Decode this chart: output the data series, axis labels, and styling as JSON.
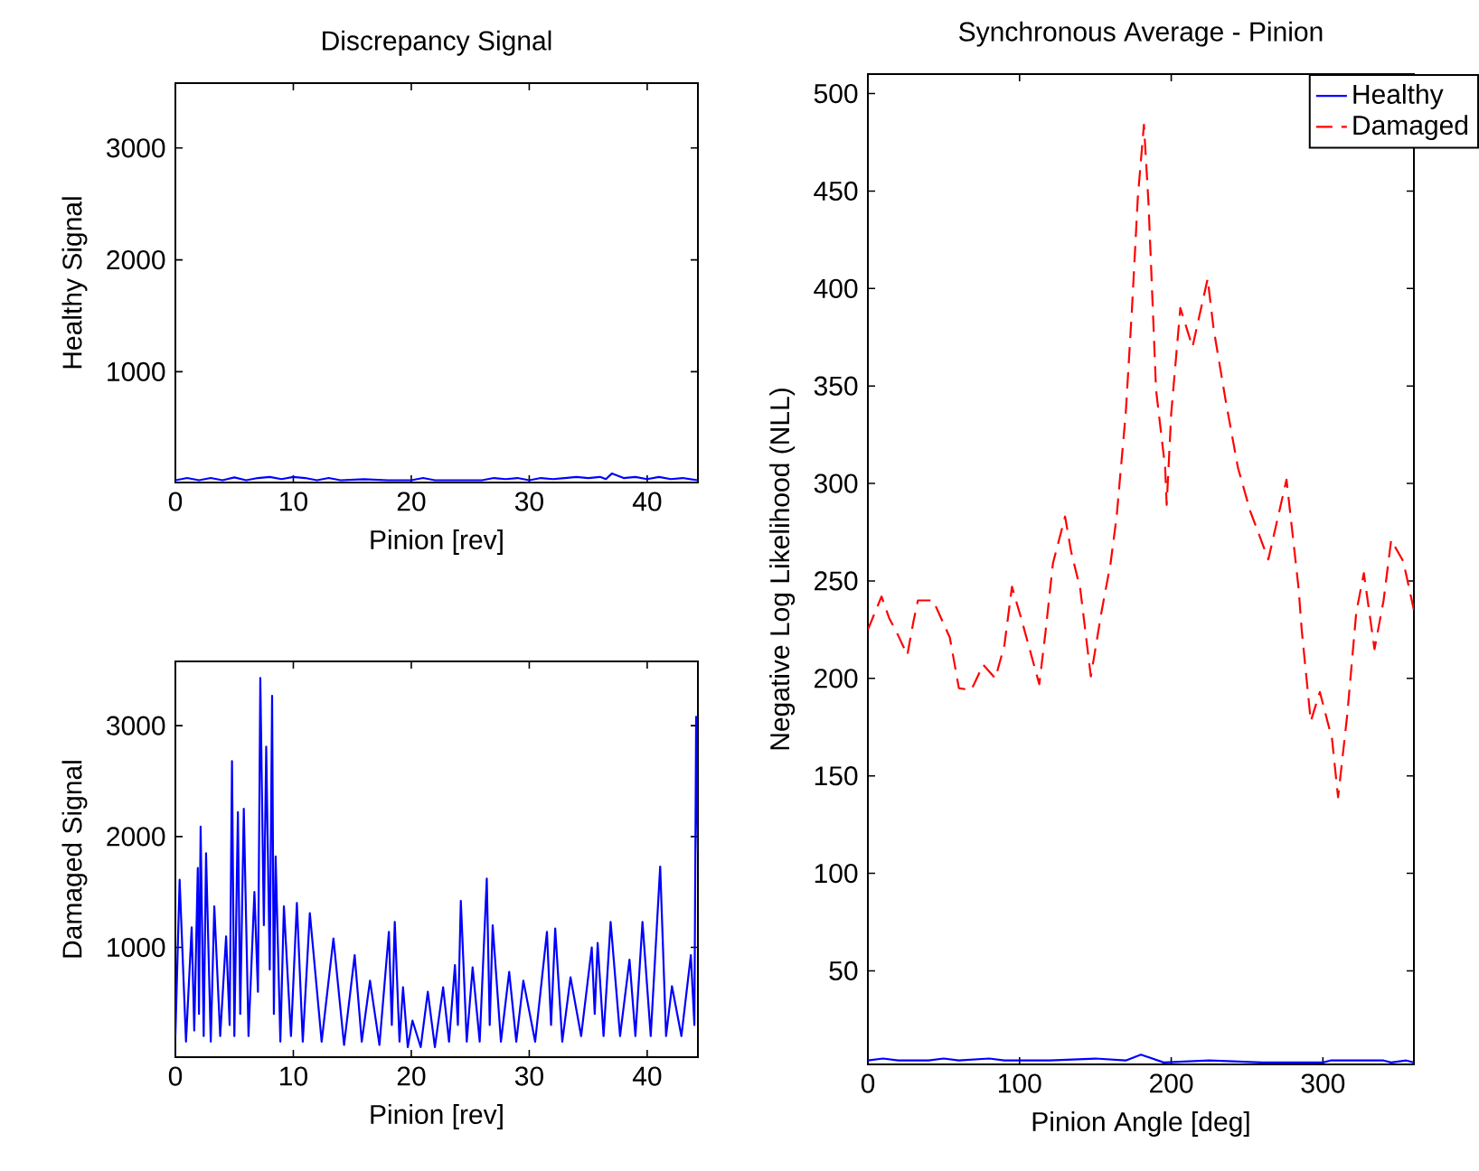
{
  "chart_data": [
    {
      "type": "line",
      "title": "Discrepancy Signal",
      "xlabel": "Pinion [rev]",
      "ylabel": "Healthy Signal",
      "xlim": [
        0,
        44.3
      ],
      "xticks": [
        0,
        10,
        20,
        30,
        40
      ],
      "ylim": [
        10,
        3580
      ],
      "yticks": [
        1000,
        2000,
        3000
      ],
      "series": [
        {
          "color": "#0000ff",
          "line_style": "solid",
          "x": [
            0,
            1,
            2,
            3,
            4,
            5,
            6,
            7,
            8,
            9,
            10,
            11,
            12,
            13,
            14,
            16,
            18,
            20,
            21,
            22,
            24,
            26,
            27,
            28,
            29,
            30,
            31,
            32,
            33,
            34,
            35,
            36,
            36.5,
            37,
            38,
            39,
            40,
            41,
            42,
            43,
            44.3
          ],
          "values": [
            30,
            50,
            30,
            50,
            30,
            55,
            30,
            50,
            60,
            40,
            60,
            50,
            30,
            50,
            30,
            40,
            30,
            30,
            50,
            30,
            30,
            30,
            50,
            40,
            50,
            30,
            50,
            40,
            50,
            60,
            50,
            60,
            40,
            90,
            50,
            60,
            40,
            60,
            40,
            50,
            30
          ]
        }
      ]
    },
    {
      "type": "line",
      "xlabel": "Pinion [rev]",
      "ylabel": "Damaged Signal",
      "xlim": [
        0,
        44.3
      ],
      "xticks": [
        0,
        10,
        20,
        30,
        40
      ],
      "ylim": [
        10,
        3580
      ],
      "yticks": [
        1000,
        2000,
        3000
      ],
      "series": [
        {
          "color": "#0000ff",
          "line_style": "solid",
          "x": [
            0,
            0.36,
            0.9,
            1.38,
            1.6,
            1.9,
            2.0,
            2.14,
            2.4,
            2.6,
            3.0,
            3.3,
            3.8,
            4.3,
            4.6,
            4.8,
            5.0,
            5.3,
            5.5,
            5.8,
            6.2,
            6.7,
            7.0,
            7.2,
            7.5,
            7.7,
            8.0,
            8.2,
            8.35,
            8.5,
            8.9,
            9.2,
            9.8,
            10.3,
            10.8,
            11.4,
            12.4,
            13.4,
            14.3,
            15.2,
            15.8,
            16.5,
            17.3,
            18.1,
            18.35,
            18.6,
            19.0,
            19.3,
            19.7,
            20.1,
            20.8,
            21.4,
            22.0,
            22.7,
            23.2,
            23.7,
            23.95,
            24.2,
            24.7,
            25.2,
            25.8,
            26.4,
            26.65,
            26.9,
            27.6,
            28.3,
            28.9,
            29.5,
            30.5,
            31.5,
            31.85,
            32.2,
            32.8,
            33.5,
            34.4,
            35.3,
            35.55,
            35.8,
            36.3,
            36.9,
            37.7,
            38.5,
            39.0,
            39.6,
            40.3,
            41.1,
            41.6,
            42.1,
            42.9,
            43.7,
            44.0,
            44.15,
            44.3
          ],
          "values": [
            200,
            1610,
            150,
            1180,
            250,
            1716,
            400,
            2090,
            200,
            1850,
            150,
            1370,
            200,
            1100,
            300,
            2680,
            200,
            2220,
            400,
            2250,
            200,
            1500,
            600,
            3430,
            1200,
            2810,
            800,
            3270,
            400,
            1820,
            150,
            1370,
            200,
            1400,
            150,
            1310,
            150,
            1080,
            120,
            930,
            150,
            700,
            120,
            1140,
            300,
            1230,
            150,
            640,
            100,
            340,
            100,
            600,
            100,
            640,
            150,
            840,
            300,
            1420,
            150,
            820,
            150,
            1620,
            300,
            1200,
            150,
            780,
            150,
            700,
            150,
            1140,
            300,
            1170,
            150,
            730,
            200,
            1000,
            400,
            1040,
            200,
            1230,
            200,
            890,
            200,
            1230,
            200,
            1730,
            200,
            650,
            200,
            930,
            300,
            3080,
            1850
          ]
        }
      ]
    },
    {
      "type": "line",
      "title": "Synchronous Average - Pinion",
      "xlabel": "Pinion Angle [deg]",
      "ylabel": "Negative Log Likelihood (NLL)",
      "xlim": [
        0,
        360
      ],
      "xticks": [
        0,
        100,
        200,
        300
      ],
      "ylim": [
        2,
        510
      ],
      "yticks": [
        50,
        100,
        150,
        200,
        250,
        300,
        350,
        400,
        450,
        500
      ],
      "legend": "top right",
      "series": [
        {
          "name": "Healthy",
          "color": "#0000ff",
          "line_style": "solid",
          "x": [
            0,
            10,
            20,
            40,
            50,
            60,
            80,
            90,
            120,
            150,
            170,
            180,
            195,
            225,
            260,
            300,
            305,
            340,
            345,
            355,
            360
          ],
          "values": [
            4,
            5,
            4,
            4,
            5,
            4,
            5,
            4,
            4,
            5,
            4,
            7,
            3,
            4,
            3,
            3,
            4,
            4,
            3,
            4,
            3
          ]
        },
        {
          "name": "Damaged",
          "color": "#ff0000",
          "line_style": "dashed",
          "x": [
            0,
            9,
            14,
            20,
            26,
            30,
            33,
            43,
            54,
            60,
            68,
            70,
            76,
            84,
            90,
            95,
            101,
            113,
            117,
            122,
            130,
            134,
            140,
            147,
            154,
            160,
            164,
            170,
            174,
            178,
            182,
            185,
            187,
            190,
            196,
            197,
            200,
            206,
            214,
            224,
            228,
            236,
            244,
            252,
            264,
            276,
            284,
            286,
            292,
            298,
            306,
            310,
            316,
            322,
            327,
            334,
            340,
            345,
            353,
            360
          ],
          "values": [
            225,
            242,
            231,
            222,
            212,
            229,
            240,
            240,
            221,
            195,
            194,
            197,
            207,
            200,
            217,
            247,
            231,
            197,
            223,
            259,
            283,
            265,
            246,
            201,
            234,
            259,
            283,
            336,
            388,
            447,
            484,
            444,
            406,
            348,
            308,
            289,
            336,
            390,
            370,
            405,
            379,
            342,
            308,
            286,
            261,
            302,
            246,
            225,
            178,
            193,
            169,
            139,
            181,
            234,
            254,
            215,
            240,
            271,
            260,
            235
          ]
        }
      ]
    }
  ]
}
